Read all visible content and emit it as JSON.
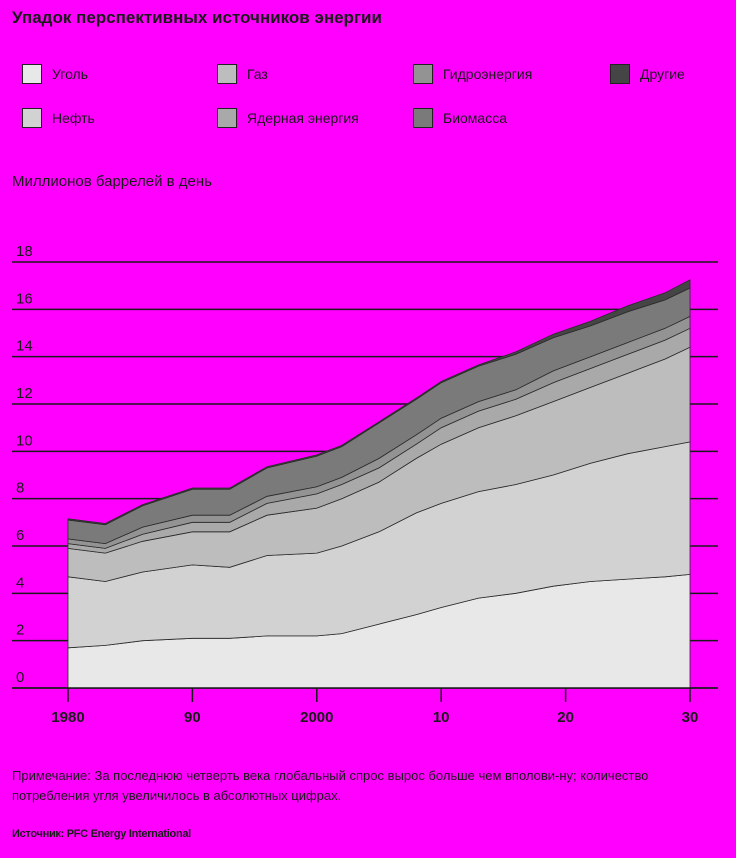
{
  "chart_data": {
    "type": "area",
    "stacked": true,
    "title": "Упадок перспективных источников энергии",
    "ylabel": "Миллионов баррелей в день",
    "ylim": [
      0,
      18
    ],
    "yticks": [
      0,
      2,
      4,
      6,
      8,
      10,
      12,
      14,
      16,
      18
    ],
    "xlim": [
      1980,
      2030
    ],
    "xticks": [
      {
        "value": 1980,
        "label": "1980"
      },
      {
        "value": 1990,
        "label": "90"
      },
      {
        "value": 2000,
        "label": "2000"
      },
      {
        "value": 2010,
        "label": "10"
      },
      {
        "value": 2020,
        "label": "20"
      },
      {
        "value": 2030,
        "label": "30"
      }
    ],
    "x": [
      1980,
      1983,
      1986,
      1990,
      1993,
      1996,
      2000,
      2002,
      2005,
      2008,
      2010,
      2013,
      2016,
      2019,
      2022,
      2025,
      2028,
      2030
    ],
    "series": [
      {
        "name": "Уголь",
        "color": "#e8e8e8",
        "values": [
          1.7,
          1.8,
          2.0,
          2.1,
          2.1,
          2.2,
          2.2,
          2.3,
          2.7,
          3.1,
          3.4,
          3.8,
          4.0,
          4.3,
          4.5,
          4.6,
          4.7,
          4.8
        ]
      },
      {
        "name": "Нефть",
        "color": "#d2d2d2",
        "values": [
          3.0,
          2.7,
          2.9,
          3.1,
          3.0,
          3.4,
          3.5,
          3.7,
          3.9,
          4.3,
          4.4,
          4.5,
          4.6,
          4.7,
          5.0,
          5.3,
          5.5,
          5.6
        ]
      },
      {
        "name": "Газ",
        "color": "#bdbdbd",
        "values": [
          1.2,
          1.2,
          1.3,
          1.4,
          1.5,
          1.7,
          1.9,
          2.0,
          2.1,
          2.3,
          2.5,
          2.7,
          2.9,
          3.1,
          3.2,
          3.4,
          3.7,
          4.0
        ]
      },
      {
        "name": "Ядерная энергия",
        "color": "#a9a9a9",
        "values": [
          0.2,
          0.2,
          0.3,
          0.4,
          0.4,
          0.5,
          0.6,
          0.6,
          0.6,
          0.6,
          0.7,
          0.7,
          0.7,
          0.8,
          0.8,
          0.8,
          0.8,
          0.8
        ]
      },
      {
        "name": "Гидроэнергия",
        "color": "#939393",
        "values": [
          0.2,
          0.2,
          0.3,
          0.3,
          0.3,
          0.3,
          0.3,
          0.3,
          0.4,
          0.4,
          0.4,
          0.4,
          0.4,
          0.5,
          0.5,
          0.5,
          0.5,
          0.5
        ]
      },
      {
        "name": "Биомасса",
        "color": "#7a7a7a",
        "values": [
          0.8,
          0.8,
          0.9,
          1.1,
          1.1,
          1.2,
          1.3,
          1.3,
          1.5,
          1.5,
          1.5,
          1.5,
          1.5,
          1.4,
          1.3,
          1.3,
          1.2,
          1.2
        ]
      },
      {
        "name": "Другие",
        "color": "#454545",
        "values": [
          0.05,
          0.05,
          0.05,
          0.05,
          0.05,
          0.05,
          0.05,
          0.05,
          0.05,
          0.05,
          0.05,
          0.05,
          0.1,
          0.15,
          0.2,
          0.25,
          0.3,
          0.35
        ]
      }
    ]
  },
  "note": "Примечание: За последнюю четверть века глобальный спрос вырос больше чем вполови-ну; количество потребления угля увеличилось в абсолютных цифрах.",
  "source": "Источник: PFC Energy International",
  "legend": {
    "items": [
      {
        "label": "Уголь",
        "color": "#e8e8e8"
      },
      {
        "label": "Газ",
        "color": "#bdbdbd"
      },
      {
        "label": "Гидроэнергия",
        "color": "#939393"
      },
      {
        "label": "Другие",
        "color": "#454545"
      },
      {
        "label": "Нефть",
        "color": "#d2d2d2"
      },
      {
        "label": "Ядерная энергия",
        "color": "#a9a9a9"
      },
      {
        "label": "Биомасса",
        "color": "#7a7a7a"
      }
    ]
  }
}
